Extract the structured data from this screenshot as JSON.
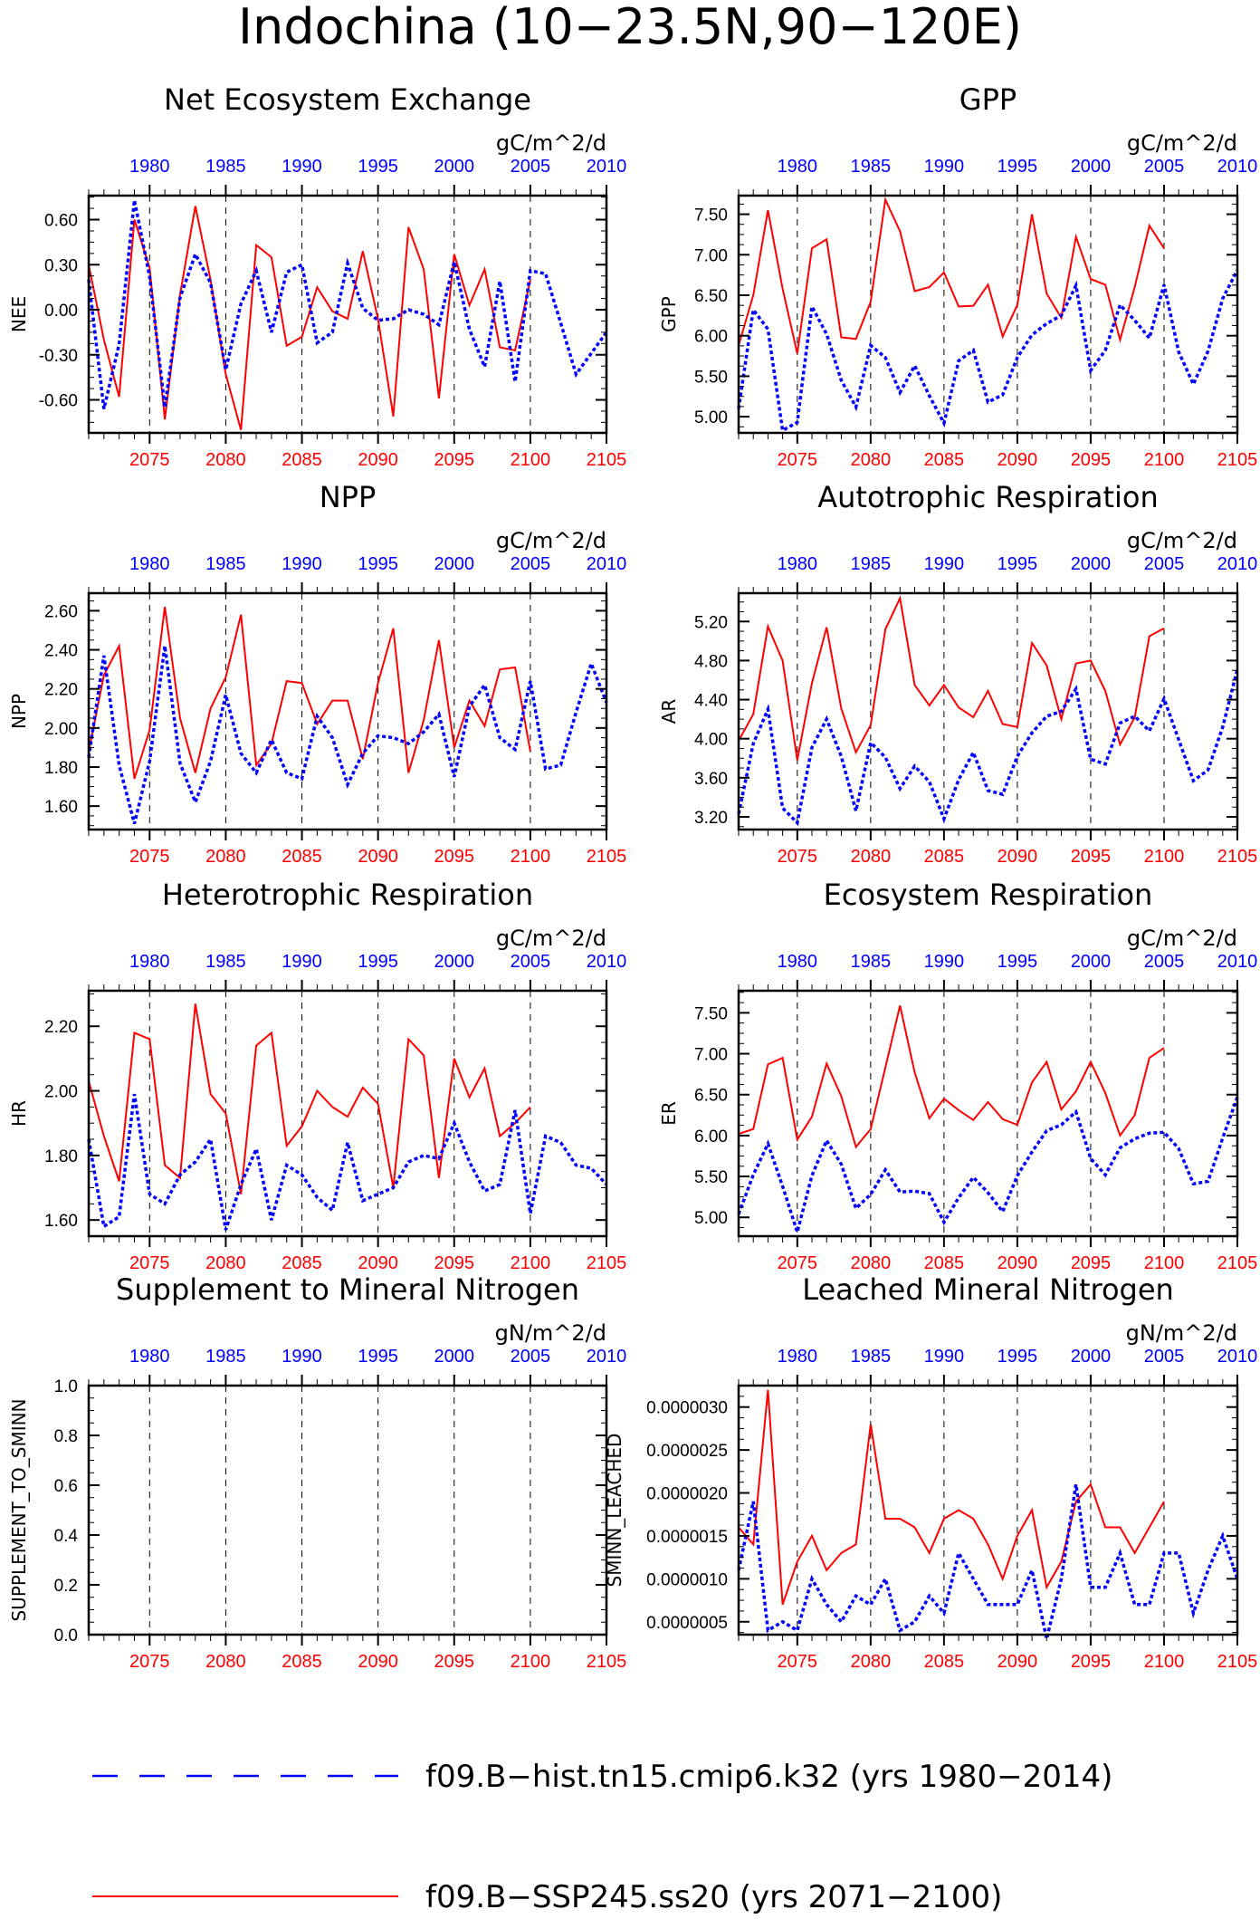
{
  "figure": {
    "title": "Indochina (10−23.5N,90−120E)",
    "legend": [
      {
        "label": "f09.B−hist.tn15.cmip6.k32 (yrs 1980−2014)",
        "color": "#0000ff",
        "style": "dashed"
      },
      {
        "label": "f09.B−SSP245.ss20 (yrs 2071−2100)",
        "color": "#ff0000",
        "style": "solid"
      }
    ],
    "colors": {
      "historical": "#0000ff",
      "future": "#ff0000",
      "axis": "#000000"
    }
  },
  "chart_data": [
    {
      "type": "line",
      "title": "Net Ecosystem Exchange",
      "ylabel": "NEE",
      "units": "gC/m^2/d",
      "x_bottom_ticks": [
        "2075",
        "2080",
        "2085",
        "2090",
        "2095",
        "2100",
        "2105"
      ],
      "x_top_ticks": [
        "1980",
        "1985",
        "1990",
        "1995",
        "2000",
        "2005",
        "2010"
      ],
      "y_ticks": [
        "0.60",
        "0.30",
        "0.00",
        "-0.30",
        "-0.60"
      ],
      "ylim": [
        -0.82,
        0.76
      ],
      "xlim_bottom": [
        2071,
        2105
      ],
      "xlim_top": [
        1976,
        2010
      ],
      "series": [
        {
          "years": "2071-2100",
          "color": "#ff0000",
          "values": [
            0.3,
            -0.2,
            -0.58,
            0.6,
            0.28,
            -0.73,
            0.1,
            0.69,
            0.2,
            -0.43,
            -0.8,
            0.43,
            0.35,
            -0.24,
            -0.18,
            0.15,
            -0.01,
            -0.06,
            0.39,
            -0.06,
            -0.71,
            0.55,
            0.27,
            -0.59,
            0.37,
            0.03,
            0.27,
            -0.25,
            -0.27,
            0.2
          ]
        },
        {
          "years": "1980-2014",
          "color": "#0000ff",
          "values": [
            0.2,
            -0.66,
            -0.23,
            0.73,
            0.22,
            -0.65,
            0.08,
            0.37,
            0.18,
            -0.4,
            0.04,
            0.26,
            -0.15,
            0.25,
            0.3,
            -0.22,
            -0.15,
            0.31,
            0.01,
            -0.07,
            -0.06,
            0.0,
            -0.03,
            -0.1,
            0.32,
            -0.13,
            -0.38,
            0.19,
            -0.48,
            0.26,
            0.24,
            -0.09,
            -0.43,
            -0.29,
            -0.15
          ]
        }
      ]
    },
    {
      "type": "line",
      "title": "GPP",
      "ylabel": "GPP",
      "units": "gC/m^2/d",
      "x_bottom_ticks": [
        "2075",
        "2080",
        "2085",
        "2090",
        "2095",
        "2100",
        "2105"
      ],
      "x_top_ticks": [
        "1980",
        "1985",
        "1990",
        "1995",
        "2000",
        "2005",
        "2010"
      ],
      "y_ticks": [
        "7.50",
        "7.00",
        "6.50",
        "6.00",
        "5.50",
        "5.00"
      ],
      "ylim": [
        4.8,
        7.73
      ],
      "xlim_bottom": [
        2071,
        2105
      ],
      "xlim_top": [
        1976,
        2010
      ],
      "series": [
        {
          "years": "2071-2100",
          "color": "#ff0000",
          "values": [
            5.88,
            6.5,
            7.55,
            6.58,
            5.78,
            7.08,
            7.19,
            5.98,
            5.96,
            6.42,
            7.68,
            7.29,
            6.55,
            6.6,
            6.78,
            6.36,
            6.37,
            6.63,
            5.99,
            6.38,
            7.5,
            6.52,
            6.22,
            7.22,
            6.7,
            6.63,
            5.95,
            6.6,
            7.36,
            7.08
          ]
        },
        {
          "years": "1980-2014",
          "color": "#0000ff",
          "values": [
            5.1,
            6.32,
            6.08,
            4.83,
            4.93,
            6.36,
            6.02,
            5.45,
            5.12,
            5.88,
            5.73,
            5.3,
            5.63,
            5.26,
            4.92,
            5.69,
            5.82,
            5.18,
            5.27,
            5.73,
            6.01,
            6.15,
            6.25,
            6.62,
            5.57,
            5.82,
            6.38,
            6.19,
            5.97,
            6.63,
            5.8,
            5.4,
            5.81,
            6.46,
            6.81
          ]
        }
      ]
    },
    {
      "type": "line",
      "title": "NPP",
      "ylabel": "NPP",
      "units": "gC/m^2/d",
      "x_bottom_ticks": [
        "2075",
        "2080",
        "2085",
        "2090",
        "2095",
        "2100",
        "2105"
      ],
      "x_top_ticks": [
        "1980",
        "1985",
        "1990",
        "1995",
        "2000",
        "2005",
        "2010"
      ],
      "y_ticks": [
        "2.60",
        "2.40",
        "2.20",
        "2.00",
        "1.80",
        "1.60"
      ],
      "ylim": [
        1.48,
        2.69
      ],
      "xlim_bottom": [
        2071,
        2105
      ],
      "xlim_top": [
        1976,
        2010
      ],
      "series": [
        {
          "years": "2071-2100",
          "color": "#ff0000",
          "values": [
            1.88,
            2.27,
            2.42,
            1.74,
            1.99,
            2.62,
            2.05,
            1.77,
            2.1,
            2.26,
            2.58,
            1.81,
            1.92,
            2.24,
            2.23,
            2.02,
            2.14,
            2.14,
            1.84,
            2.23,
            2.51,
            1.77,
            2.04,
            2.45,
            1.9,
            2.14,
            2.01,
            2.3,
            2.31,
            1.88
          ]
        },
        {
          "years": "1980-2014",
          "color": "#0000ff",
          "values": [
            1.85,
            2.37,
            1.81,
            1.51,
            1.83,
            2.42,
            1.82,
            1.62,
            1.83,
            2.17,
            1.87,
            1.77,
            1.94,
            1.77,
            1.74,
            2.06,
            1.95,
            1.71,
            1.87,
            1.96,
            1.95,
            1.92,
            1.98,
            2.07,
            1.75,
            2.11,
            2.22,
            1.95,
            1.89,
            2.24,
            1.79,
            1.81,
            2.08,
            2.33,
            2.13
          ]
        }
      ]
    },
    {
      "type": "line",
      "title": "Autotrophic Respiration",
      "ylabel": "AR",
      "units": "gC/m^2/d",
      "x_bottom_ticks": [
        "2075",
        "2080",
        "2085",
        "2090",
        "2095",
        "2100",
        "2105"
      ],
      "x_top_ticks": [
        "1980",
        "1985",
        "1990",
        "1995",
        "2000",
        "2005",
        "2010"
      ],
      "y_ticks": [
        "5.20",
        "4.80",
        "4.40",
        "4.00",
        "3.60",
        "3.20"
      ],
      "ylim": [
        3.07,
        5.49
      ],
      "xlim_bottom": [
        2071,
        2105
      ],
      "xlim_top": [
        1976,
        2010
      ],
      "series": [
        {
          "years": "2071-2100",
          "color": "#ff0000",
          "values": [
            3.98,
            4.25,
            5.15,
            4.8,
            3.78,
            4.57,
            5.14,
            4.31,
            3.86,
            4.14,
            5.12,
            5.44,
            4.55,
            4.34,
            4.55,
            4.32,
            4.22,
            4.49,
            4.15,
            4.12,
            4.98,
            4.75,
            4.2,
            4.77,
            4.8,
            4.49,
            3.94,
            4.22,
            5.05,
            5.13
          ]
        },
        {
          "years": "1980-2014",
          "color": "#0000ff",
          "values": [
            3.23,
            3.95,
            4.3,
            3.29,
            3.14,
            3.91,
            4.2,
            3.82,
            3.26,
            3.96,
            3.81,
            3.49,
            3.72,
            3.56,
            3.18,
            3.58,
            3.86,
            3.47,
            3.43,
            3.82,
            4.06,
            4.23,
            4.28,
            4.51,
            3.79,
            3.74,
            4.16,
            4.23,
            4.08,
            4.41,
            3.99,
            3.57,
            3.68,
            4.12,
            4.71
          ]
        }
      ]
    },
    {
      "type": "line",
      "title": "Heterotrophic Respiration",
      "ylabel": "HR",
      "units": "gC/m^2/d",
      "x_bottom_ticks": [
        "2075",
        "2080",
        "2085",
        "2090",
        "2095",
        "2100",
        "2105"
      ],
      "x_top_ticks": [
        "1980",
        "1985",
        "1990",
        "1995",
        "2000",
        "2005",
        "2010"
      ],
      "y_ticks": [
        "2.20",
        "2.00",
        "1.80",
        "1.60"
      ],
      "ylim": [
        1.55,
        2.31
      ],
      "xlim_bottom": [
        2071,
        2105
      ],
      "xlim_top": [
        1976,
        2010
      ],
      "series": [
        {
          "years": "2071-2100",
          "color": "#ff0000",
          "values": [
            2.03,
            1.86,
            1.72,
            2.18,
            2.16,
            1.77,
            1.73,
            2.27,
            1.99,
            1.93,
            1.68,
            2.14,
            2.18,
            1.83,
            1.89,
            2.0,
            1.95,
            1.92,
            2.01,
            1.96,
            1.7,
            2.16,
            2.11,
            1.73,
            2.1,
            1.98,
            2.07,
            1.86,
            1.9,
            1.95
          ]
        },
        {
          "years": "1980-2014",
          "color": "#0000ff",
          "values": [
            1.85,
            1.58,
            1.61,
            1.99,
            1.68,
            1.65,
            1.74,
            1.78,
            1.85,
            1.57,
            1.71,
            1.82,
            1.6,
            1.77,
            1.74,
            1.67,
            1.63,
            1.84,
            1.66,
            1.68,
            1.7,
            1.78,
            1.8,
            1.79,
            1.9,
            1.78,
            1.69,
            1.71,
            1.94,
            1.62,
            1.86,
            1.84,
            1.77,
            1.76,
            1.71
          ]
        }
      ]
    },
    {
      "type": "line",
      "title": "Ecosystem Respiration",
      "ylabel": "ER",
      "units": "gC/m^2/d",
      "x_bottom_ticks": [
        "2075",
        "2080",
        "2085",
        "2090",
        "2095",
        "2100",
        "2105"
      ],
      "x_top_ticks": [
        "1980",
        "1985",
        "1990",
        "1995",
        "2000",
        "2005",
        "2010"
      ],
      "y_ticks": [
        "7.50",
        "7.00",
        "6.50",
        "6.00",
        "5.50",
        "5.00"
      ],
      "ylim": [
        4.77,
        7.77
      ],
      "xlim_bottom": [
        2071,
        2105
      ],
      "xlim_top": [
        1976,
        2010
      ],
      "series": [
        {
          "years": "2071-2100",
          "color": "#ff0000",
          "values": [
            6.02,
            6.08,
            6.87,
            6.95,
            5.95,
            6.23,
            6.88,
            6.48,
            5.86,
            6.08,
            6.83,
            7.59,
            6.77,
            6.21,
            6.45,
            6.31,
            6.19,
            6.41,
            6.2,
            6.13,
            6.65,
            6.9,
            6.32,
            6.54,
            6.9,
            6.52,
            6.0,
            6.25,
            6.95,
            7.07
          ]
        },
        {
          "years": "1980-2014",
          "color": "#0000ff",
          "values": [
            5.04,
            5.52,
            5.9,
            5.38,
            4.82,
            5.51,
            5.94,
            5.65,
            5.11,
            5.28,
            5.58,
            5.31,
            5.32,
            5.29,
            4.94,
            5.24,
            5.49,
            5.3,
            5.07,
            5.51,
            5.8,
            6.06,
            6.13,
            6.29,
            5.72,
            5.52,
            5.85,
            5.96,
            6.03,
            6.04,
            5.84,
            5.41,
            5.44,
            5.97,
            6.47
          ]
        }
      ]
    },
    {
      "type": "line",
      "title": "Supplement to Mineral Nitrogen",
      "ylabel": "SUPPLEMENT_TO_SMINN",
      "units": "gN/m^2/d",
      "x_bottom_ticks": [
        "2075",
        "2080",
        "2085",
        "2090",
        "2095",
        "2100",
        "2105"
      ],
      "x_top_ticks": [
        "1980",
        "1985",
        "1990",
        "1995",
        "2000",
        "2005",
        "2010"
      ],
      "y_ticks": [
        "1.0",
        "0.8",
        "0.6",
        "0.4",
        "0.2",
        "0.0"
      ],
      "ylim": [
        0,
        1.0
      ],
      "xlim_bottom": [
        2071,
        2105
      ],
      "xlim_top": [
        1976,
        2010
      ],
      "series": [
        {
          "years": "2071-2100",
          "color": "#ff0000",
          "values": []
        },
        {
          "years": "1980-2014",
          "color": "#0000ff",
          "values": []
        }
      ]
    },
    {
      "type": "line",
      "title": "Leached Mineral Nitrogen",
      "ylabel": "SMINN_LEACHED",
      "units": "gN/m^2/d",
      "x_bottom_ticks": [
        "2075",
        "2080",
        "2085",
        "2090",
        "2095",
        "2100",
        "2105"
      ],
      "x_top_ticks": [
        "1980",
        "1985",
        "1990",
        "1995",
        "2000",
        "2005",
        "2010"
      ],
      "y_ticks": [
        "0.0000030",
        "0.0000025",
        "0.0000020",
        "0.0000015",
        "0.0000010",
        "0.0000005"
      ],
      "ylim": [
        3.5e-07,
        3.25e-06
      ],
      "xlim_bottom": [
        2071,
        2105
      ],
      "xlim_top": [
        1976,
        2010
      ],
      "series": [
        {
          "years": "2071-2100",
          "color": "#ff0000",
          "values": [
            1.6e-06,
            1.4e-06,
            3.2e-06,
            7e-07,
            1.2e-06,
            1.5e-06,
            1.1e-06,
            1.3e-06,
            1.4e-06,
            2.8e-06,
            1.7e-06,
            1.7e-06,
            1.6e-06,
            1.3e-06,
            1.7e-06,
            1.8e-06,
            1.7e-06,
            1.4e-06,
            1e-06,
            1.5e-06,
            1.8e-06,
            9e-07,
            1.2e-06,
            1.9e-06,
            2.1e-06,
            1.6e-06,
            1.6e-06,
            1.3e-06,
            1.6e-06,
            1.9e-06
          ]
        },
        {
          "years": "1980-2014",
          "color": "#0000ff",
          "values": [
            1.1e-06,
            1.9e-06,
            4e-07,
            5e-07,
            4e-07,
            1e-06,
            7e-07,
            5e-07,
            8e-07,
            7e-07,
            1e-06,
            4e-07,
            5e-07,
            8e-07,
            6e-07,
            1.3e-06,
            1e-06,
            7e-07,
            7e-07,
            7e-07,
            1.1e-06,
            3e-07,
            1e-06,
            2.1e-06,
            9e-07,
            9e-07,
            1.3e-06,
            7e-07,
            7e-07,
            1.3e-06,
            1.3e-06,
            6e-07,
            1.1e-06,
            1.5e-06,
            1e-06
          ]
        }
      ]
    }
  ]
}
